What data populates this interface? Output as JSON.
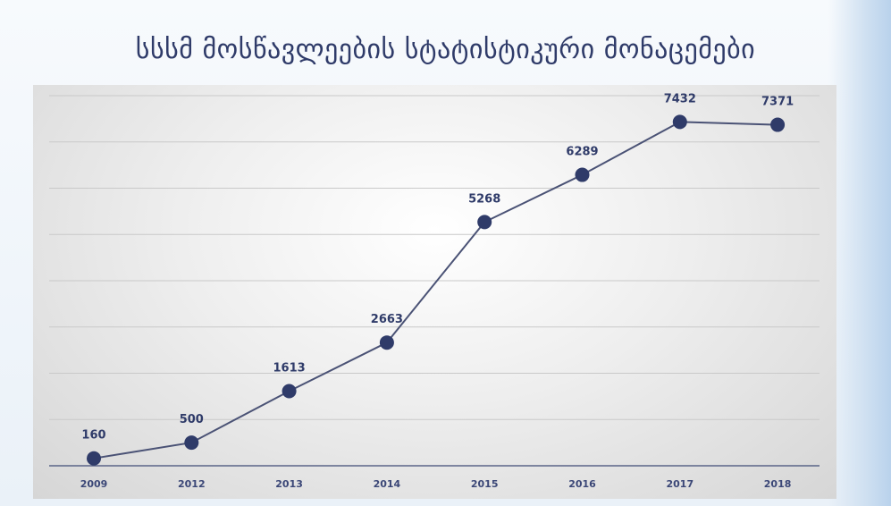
{
  "chart_data": {
    "type": "line",
    "title": "სსსმ მოსწავლეების სტატისტიკური მონაცემები",
    "categories": [
      "2009",
      "2012",
      "2013",
      "2014",
      "2015",
      "2016",
      "2017",
      "2018"
    ],
    "series": [
      {
        "values": [
          160,
          500,
          1613,
          2663,
          5268,
          6289,
          7432,
          7371
        ]
      }
    ],
    "data_labels": [
      "160",
      "500",
      "1613",
      "2663",
      "5268",
      "6289",
      "7432",
      "7371"
    ],
    "ylim": [
      0,
      8000
    ],
    "grid": true,
    "colors": {
      "line": "#4a5275",
      "marker": "#2f3b69",
      "text": "#2f3b69"
    }
  }
}
